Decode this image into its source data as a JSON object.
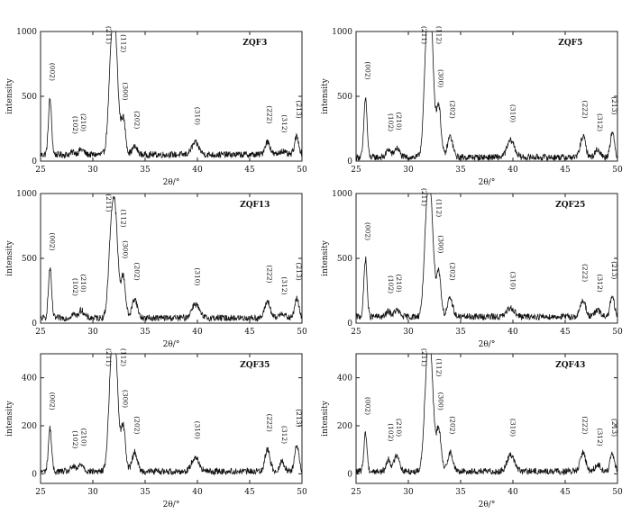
{
  "chart_data": [
    {
      "type": "line",
      "title": "ZQF3",
      "xlabel": "2θ/°",
      "ylabel": "intensity",
      "xlim": [
        25,
        50
      ],
      "ylim": [
        0,
        1000
      ],
      "xticks": [
        "25",
        "30",
        "35",
        "40",
        "45",
        "50"
      ],
      "yticks": [
        "0",
        "500",
        "1000"
      ],
      "peak_labels": [
        "(002)",
        "(102)",
        "(210)",
        "(211)",
        "(112)",
        "(300)",
        "(202)",
        "(310)",
        "(222)",
        "(312)",
        "(213)"
      ],
      "peaks": [
        {
          "x": 25.9,
          "y": 480
        },
        {
          "x": 28.1,
          "y": 70
        },
        {
          "x": 28.9,
          "y": 90
        },
        {
          "x": 31.8,
          "y": 820
        },
        {
          "x": 32.2,
          "y": 700
        },
        {
          "x": 32.9,
          "y": 330
        },
        {
          "x": 34.0,
          "y": 110
        },
        {
          "x": 39.8,
          "y": 140
        },
        {
          "x": 46.7,
          "y": 150
        },
        {
          "x": 48.1,
          "y": 80
        },
        {
          "x": 49.5,
          "y": 190
        }
      ],
      "baseline": 50
    },
    {
      "type": "line",
      "title": "ZQF5",
      "xlabel": "2θ/°",
      "ylabel": "intensity",
      "xlim": [
        25,
        50
      ],
      "ylim": [
        0,
        1000
      ],
      "xticks": [
        "25",
        "30",
        "35",
        "40",
        "45",
        "50"
      ],
      "yticks": [
        "0",
        "500",
        "1000"
      ],
      "peak_labels": [
        "(002)",
        "(102)",
        "(210)",
        "(211)",
        "(112)",
        "(300)",
        "(202)",
        "(310)",
        "(222)",
        "(312)",
        "(213)"
      ],
      "peaks": [
        {
          "x": 25.9,
          "y": 490
        },
        {
          "x": 28.1,
          "y": 90
        },
        {
          "x": 28.9,
          "y": 100
        },
        {
          "x": 31.8,
          "y": 950
        },
        {
          "x": 32.2,
          "y": 800
        },
        {
          "x": 32.9,
          "y": 430
        },
        {
          "x": 34.0,
          "y": 190
        },
        {
          "x": 39.8,
          "y": 160
        },
        {
          "x": 46.7,
          "y": 190
        },
        {
          "x": 48.1,
          "y": 90
        },
        {
          "x": 49.5,
          "y": 220
        }
      ],
      "baseline": 30
    },
    {
      "type": "line",
      "title": "ZQF13",
      "xlabel": "2θ/°",
      "ylabel": "intensity",
      "xlim": [
        25,
        50
      ],
      "ylim": [
        0,
        1000
      ],
      "xticks": [
        "25",
        "30",
        "35",
        "40",
        "45",
        "50"
      ],
      "yticks": [
        "0",
        "500",
        "1000"
      ],
      "peak_labels": [
        "(002)",
        "(102)",
        "(210)",
        "(211)",
        "(112)",
        "(300)",
        "(202)",
        "(310)",
        "(222)",
        "(312)",
        "(213)"
      ],
      "peaks": [
        {
          "x": 25.9,
          "y": 420
        },
        {
          "x": 28.1,
          "y": 70
        },
        {
          "x": 28.9,
          "y": 100
        },
        {
          "x": 31.8,
          "y": 720
        },
        {
          "x": 32.2,
          "y": 600
        },
        {
          "x": 32.9,
          "y": 360
        },
        {
          "x": 34.0,
          "y": 190
        },
        {
          "x": 39.8,
          "y": 150
        },
        {
          "x": 46.7,
          "y": 170
        },
        {
          "x": 48.1,
          "y": 80
        },
        {
          "x": 49.5,
          "y": 190
        }
      ],
      "baseline": 40
    },
    {
      "type": "line",
      "title": "ZQF25",
      "xlabel": "2θ/°",
      "ylabel": "intensity",
      "xlim": [
        25,
        50
      ],
      "ylim": [
        0,
        1000
      ],
      "xticks": [
        "25",
        "30",
        "35",
        "40",
        "45",
        "50"
      ],
      "yticks": [
        "0",
        "500",
        "1000"
      ],
      "peak_labels": [
        "(002)",
        "(102)",
        "(210)",
        "(211)",
        "(112)",
        "(300)",
        "(202)",
        "(310)",
        "(222)",
        "(312)",
        "(213)"
      ],
      "peaks": [
        {
          "x": 25.9,
          "y": 500
        },
        {
          "x": 28.1,
          "y": 90
        },
        {
          "x": 28.9,
          "y": 100
        },
        {
          "x": 31.8,
          "y": 820
        },
        {
          "x": 32.2,
          "y": 680
        },
        {
          "x": 32.9,
          "y": 400
        },
        {
          "x": 34.0,
          "y": 190
        },
        {
          "x": 39.8,
          "y": 120
        },
        {
          "x": 46.7,
          "y": 180
        },
        {
          "x": 48.1,
          "y": 100
        },
        {
          "x": 49.5,
          "y": 200
        }
      ],
      "baseline": 50
    },
    {
      "type": "line",
      "title": "ZQF35",
      "xlabel": "2θ/°",
      "ylabel": "intensity",
      "xlim": [
        25,
        50
      ],
      "ylim": [
        -40,
        500
      ],
      "xticks": [
        "25",
        "30",
        "35",
        "40",
        "45",
        "50"
      ],
      "yticks": [
        "0",
        "200",
        "400"
      ],
      "peak_labels": [
        "(002)",
        "(102)",
        "(210)",
        "(211)",
        "(112)",
        "(300)",
        "(202)",
        "(310)",
        "(222)",
        "(312)",
        "(213)"
      ],
      "peaks": [
        {
          "x": 25.9,
          "y": 190
        },
        {
          "x": 28.1,
          "y": 30
        },
        {
          "x": 28.9,
          "y": 40
        },
        {
          "x": 31.8,
          "y": 450
        },
        {
          "x": 32.2,
          "y": 380
        },
        {
          "x": 32.9,
          "y": 200
        },
        {
          "x": 34.0,
          "y": 90
        },
        {
          "x": 39.8,
          "y": 70
        },
        {
          "x": 46.7,
          "y": 100
        },
        {
          "x": 48.1,
          "y": 50
        },
        {
          "x": 49.5,
          "y": 120
        }
      ],
      "baseline": 10
    },
    {
      "type": "line",
      "title": "ZQF43",
      "xlabel": "2θ/°",
      "ylabel": "intensity",
      "xlim": [
        25,
        50
      ],
      "ylim": [
        -40,
        500
      ],
      "xticks": [
        "25",
        "30",
        "35",
        "40",
        "45",
        "50"
      ],
      "yticks": [
        "0",
        "200",
        "400"
      ],
      "peak_labels": [
        "(002)",
        "(102)",
        "(210)",
        "(211)",
        "(112)",
        "(300)",
        "(202)",
        "(310)",
        "(222)",
        "(312)",
        "(213)"
      ],
      "peaks": [
        {
          "x": 25.9,
          "y": 170
        },
        {
          "x": 28.1,
          "y": 60
        },
        {
          "x": 28.9,
          "y": 80
        },
        {
          "x": 31.8,
          "y": 420
        },
        {
          "x": 32.2,
          "y": 330
        },
        {
          "x": 32.9,
          "y": 190
        },
        {
          "x": 34.0,
          "y": 90
        },
        {
          "x": 39.8,
          "y": 80
        },
        {
          "x": 46.7,
          "y": 90
        },
        {
          "x": 48.1,
          "y": 40
        },
        {
          "x": 49.5,
          "y": 80
        }
      ],
      "baseline": 10
    }
  ]
}
